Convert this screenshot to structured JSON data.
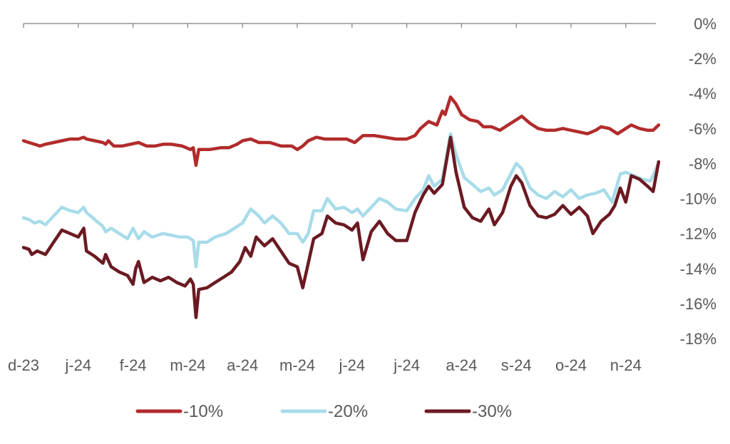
{
  "chart_data": {
    "type": "line",
    "x_ticks": [
      "d-23",
      "j-24",
      "f-24",
      "m-24",
      "a-24",
      "m-24",
      "j-24",
      "j-24",
      "a-24",
      "s-24",
      "o-24",
      "n-24"
    ],
    "y_ticks": [
      "0%",
      "-2%",
      "-4%",
      "-6%",
      "-8%",
      "-10%",
      "-12%",
      "-14%",
      "-16%",
      "-18%"
    ],
    "ylim": [
      -18,
      0
    ],
    "x_range": [
      0,
      11.6
    ],
    "grid": false,
    "legend_position": "bottom",
    "series": [
      {
        "name": "-10%",
        "color": "#b22b2b",
        "points": [
          [
            0.0,
            -6.7
          ],
          [
            0.1,
            -6.8
          ],
          [
            0.2,
            -6.9
          ],
          [
            0.3,
            -7.0
          ],
          [
            0.4,
            -6.9
          ],
          [
            0.55,
            -6.8
          ],
          [
            0.7,
            -6.7
          ],
          [
            0.85,
            -6.6
          ],
          [
            1.0,
            -6.6
          ],
          [
            1.1,
            -6.5
          ],
          [
            1.15,
            -6.6
          ],
          [
            1.3,
            -6.7
          ],
          [
            1.45,
            -6.8
          ],
          [
            1.5,
            -6.9
          ],
          [
            1.55,
            -6.7
          ],
          [
            1.65,
            -7.0
          ],
          [
            1.8,
            -7.0
          ],
          [
            1.95,
            -6.9
          ],
          [
            2.1,
            -6.8
          ],
          [
            2.25,
            -7.0
          ],
          [
            2.4,
            -7.0
          ],
          [
            2.55,
            -6.9
          ],
          [
            2.7,
            -6.9
          ],
          [
            2.9,
            -7.0
          ],
          [
            3.05,
            -7.2
          ],
          [
            3.1,
            -7.1
          ],
          [
            3.15,
            -8.1
          ],
          [
            3.2,
            -7.2
          ],
          [
            3.4,
            -7.2
          ],
          [
            3.6,
            -7.1
          ],
          [
            3.75,
            -7.1
          ],
          [
            3.9,
            -6.9
          ],
          [
            4.0,
            -6.7
          ],
          [
            4.15,
            -6.6
          ],
          [
            4.3,
            -6.8
          ],
          [
            4.5,
            -6.8
          ],
          [
            4.7,
            -7.0
          ],
          [
            4.9,
            -7.0
          ],
          [
            5.0,
            -7.2
          ],
          [
            5.1,
            -7.0
          ],
          [
            5.2,
            -6.7
          ],
          [
            5.35,
            -6.5
          ],
          [
            5.5,
            -6.6
          ],
          [
            5.7,
            -6.6
          ],
          [
            5.9,
            -6.6
          ],
          [
            6.05,
            -6.8
          ],
          [
            6.2,
            -6.4
          ],
          [
            6.4,
            -6.4
          ],
          [
            6.6,
            -6.5
          ],
          [
            6.8,
            -6.6
          ],
          [
            7.0,
            -6.6
          ],
          [
            7.15,
            -6.4
          ],
          [
            7.25,
            -6.0
          ],
          [
            7.4,
            -5.6
          ],
          [
            7.55,
            -5.8
          ],
          [
            7.65,
            -5.0
          ],
          [
            7.7,
            -5.2
          ],
          [
            7.8,
            -4.2
          ],
          [
            7.9,
            -4.6
          ],
          [
            8.0,
            -5.2
          ],
          [
            8.15,
            -5.5
          ],
          [
            8.3,
            -5.6
          ],
          [
            8.4,
            -5.9
          ],
          [
            8.55,
            -5.9
          ],
          [
            8.7,
            -6.1
          ],
          [
            8.85,
            -5.8
          ],
          [
            9.0,
            -5.5
          ],
          [
            9.1,
            -5.3
          ],
          [
            9.25,
            -5.7
          ],
          [
            9.4,
            -6.0
          ],
          [
            9.55,
            -6.1
          ],
          [
            9.7,
            -6.1
          ],
          [
            9.85,
            -6.0
          ],
          [
            10.0,
            -6.1
          ],
          [
            10.15,
            -6.2
          ],
          [
            10.3,
            -6.3
          ],
          [
            10.45,
            -6.1
          ],
          [
            10.55,
            -5.9
          ],
          [
            10.7,
            -6.0
          ],
          [
            10.85,
            -6.3
          ],
          [
            11.0,
            -6.0
          ],
          [
            11.1,
            -5.8
          ],
          [
            11.25,
            -6.0
          ],
          [
            11.4,
            -6.1
          ],
          [
            11.5,
            -6.1
          ],
          [
            11.6,
            -5.8
          ]
        ]
      },
      {
        "name": "-20%",
        "color": "#a8dce9",
        "points": [
          [
            0.0,
            -11.1
          ],
          [
            0.1,
            -11.2
          ],
          [
            0.2,
            -11.4
          ],
          [
            0.3,
            -11.3
          ],
          [
            0.4,
            -11.5
          ],
          [
            0.55,
            -11.0
          ],
          [
            0.7,
            -10.5
          ],
          [
            0.85,
            -10.7
          ],
          [
            1.0,
            -10.8
          ],
          [
            1.1,
            -10.5
          ],
          [
            1.15,
            -10.8
          ],
          [
            1.3,
            -11.2
          ],
          [
            1.45,
            -11.6
          ],
          [
            1.5,
            -11.9
          ],
          [
            1.6,
            -11.7
          ],
          [
            1.75,
            -12.0
          ],
          [
            1.9,
            -12.3
          ],
          [
            2.0,
            -11.7
          ],
          [
            2.1,
            -12.3
          ],
          [
            2.2,
            -11.9
          ],
          [
            2.35,
            -12.2
          ],
          [
            2.55,
            -12.0
          ],
          [
            2.7,
            -12.1
          ],
          [
            2.85,
            -12.2
          ],
          [
            3.0,
            -12.2
          ],
          [
            3.1,
            -12.4
          ],
          [
            3.15,
            -13.9
          ],
          [
            3.2,
            -12.5
          ],
          [
            3.35,
            -12.5
          ],
          [
            3.5,
            -12.2
          ],
          [
            3.7,
            -12.0
          ],
          [
            3.85,
            -11.7
          ],
          [
            4.0,
            -11.4
          ],
          [
            4.15,
            -10.6
          ],
          [
            4.3,
            -11.0
          ],
          [
            4.4,
            -11.4
          ],
          [
            4.55,
            -11.0
          ],
          [
            4.7,
            -11.4
          ],
          [
            4.85,
            -12.0
          ],
          [
            5.0,
            -12.0
          ],
          [
            5.1,
            -12.5
          ],
          [
            5.2,
            -12.0
          ],
          [
            5.3,
            -10.7
          ],
          [
            5.45,
            -10.7
          ],
          [
            5.55,
            -10.0
          ],
          [
            5.7,
            -10.6
          ],
          [
            5.85,
            -10.5
          ],
          [
            6.0,
            -10.8
          ],
          [
            6.1,
            -10.6
          ],
          [
            6.2,
            -11.0
          ],
          [
            6.35,
            -10.5
          ],
          [
            6.5,
            -10.0
          ],
          [
            6.65,
            -10.2
          ],
          [
            6.8,
            -10.6
          ],
          [
            7.0,
            -10.7
          ],
          [
            7.15,
            -10.0
          ],
          [
            7.3,
            -9.5
          ],
          [
            7.4,
            -8.7
          ],
          [
            7.5,
            -9.3
          ],
          [
            7.65,
            -8.9
          ],
          [
            7.8,
            -6.3
          ],
          [
            7.9,
            -7.5
          ],
          [
            8.05,
            -8.8
          ],
          [
            8.2,
            -9.2
          ],
          [
            8.35,
            -9.6
          ],
          [
            8.5,
            -9.4
          ],
          [
            8.6,
            -9.8
          ],
          [
            8.75,
            -9.5
          ],
          [
            8.9,
            -8.6
          ],
          [
            9.0,
            -8.0
          ],
          [
            9.1,
            -8.3
          ],
          [
            9.25,
            -9.4
          ],
          [
            9.4,
            -9.8
          ],
          [
            9.55,
            -10.0
          ],
          [
            9.7,
            -9.6
          ],
          [
            9.85,
            -9.9
          ],
          [
            10.0,
            -9.5
          ],
          [
            10.15,
            -10.0
          ],
          [
            10.3,
            -9.8
          ],
          [
            10.45,
            -9.7
          ],
          [
            10.6,
            -9.5
          ],
          [
            10.75,
            -10.2
          ],
          [
            10.9,
            -8.6
          ],
          [
            11.0,
            -8.5
          ],
          [
            11.15,
            -8.7
          ],
          [
            11.3,
            -8.9
          ],
          [
            11.45,
            -9.0
          ],
          [
            11.6,
            -8.0
          ]
        ]
      },
      {
        "name": "-30%",
        "color": "#6b1a22",
        "points": [
          [
            0.0,
            -12.8
          ],
          [
            0.1,
            -12.9
          ],
          [
            0.15,
            -13.2
          ],
          [
            0.25,
            -13.0
          ],
          [
            0.4,
            -13.2
          ],
          [
            0.55,
            -12.5
          ],
          [
            0.7,
            -11.8
          ],
          [
            0.85,
            -12.0
          ],
          [
            1.0,
            -12.2
          ],
          [
            1.1,
            -11.7
          ],
          [
            1.15,
            -13.0
          ],
          [
            1.3,
            -13.3
          ],
          [
            1.45,
            -13.7
          ],
          [
            1.5,
            -13.2
          ],
          [
            1.6,
            -13.9
          ],
          [
            1.75,
            -14.2
          ],
          [
            1.9,
            -14.4
          ],
          [
            2.0,
            -14.9
          ],
          [
            2.05,
            -14.0
          ],
          [
            2.1,
            -13.6
          ],
          [
            2.2,
            -14.8
          ],
          [
            2.35,
            -14.5
          ],
          [
            2.5,
            -14.7
          ],
          [
            2.65,
            -14.5
          ],
          [
            2.8,
            -14.8
          ],
          [
            2.95,
            -15.0
          ],
          [
            3.05,
            -14.6
          ],
          [
            3.1,
            -14.9
          ],
          [
            3.15,
            -16.8
          ],
          [
            3.2,
            -15.2
          ],
          [
            3.35,
            -15.1
          ],
          [
            3.5,
            -14.8
          ],
          [
            3.65,
            -14.5
          ],
          [
            3.8,
            -14.2
          ],
          [
            3.95,
            -13.6
          ],
          [
            4.05,
            -12.8
          ],
          [
            4.15,
            -13.3
          ],
          [
            4.25,
            -12.2
          ],
          [
            4.4,
            -12.7
          ],
          [
            4.55,
            -12.3
          ],
          [
            4.7,
            -13.0
          ],
          [
            4.85,
            -13.7
          ],
          [
            5.0,
            -13.9
          ],
          [
            5.1,
            -15.1
          ],
          [
            5.2,
            -13.7
          ],
          [
            5.3,
            -12.3
          ],
          [
            5.45,
            -12.0
          ],
          [
            5.55,
            -11.0
          ],
          [
            5.7,
            -11.4
          ],
          [
            5.85,
            -11.5
          ],
          [
            6.0,
            -11.8
          ],
          [
            6.1,
            -11.4
          ],
          [
            6.2,
            -13.5
          ],
          [
            6.35,
            -11.9
          ],
          [
            6.5,
            -11.3
          ],
          [
            6.65,
            -12.0
          ],
          [
            6.8,
            -12.4
          ],
          [
            7.0,
            -12.4
          ],
          [
            7.15,
            -10.8
          ],
          [
            7.3,
            -9.8
          ],
          [
            7.4,
            -9.3
          ],
          [
            7.5,
            -9.7
          ],
          [
            7.65,
            -9.2
          ],
          [
            7.8,
            -6.5
          ],
          [
            7.9,
            -8.5
          ],
          [
            8.05,
            -10.5
          ],
          [
            8.2,
            -11.1
          ],
          [
            8.35,
            -11.3
          ],
          [
            8.5,
            -10.6
          ],
          [
            8.6,
            -11.5
          ],
          [
            8.75,
            -10.8
          ],
          [
            8.9,
            -9.3
          ],
          [
            9.0,
            -8.7
          ],
          [
            9.1,
            -9.1
          ],
          [
            9.25,
            -10.4
          ],
          [
            9.4,
            -11.0
          ],
          [
            9.55,
            -11.1
          ],
          [
            9.7,
            -10.9
          ],
          [
            9.85,
            -10.4
          ],
          [
            10.0,
            -10.9
          ],
          [
            10.15,
            -10.5
          ],
          [
            10.3,
            -11.0
          ],
          [
            10.4,
            -12.0
          ],
          [
            10.55,
            -11.3
          ],
          [
            10.7,
            -10.9
          ],
          [
            10.8,
            -10.4
          ],
          [
            10.9,
            -9.4
          ],
          [
            11.0,
            -10.2
          ],
          [
            11.1,
            -8.7
          ],
          [
            11.25,
            -8.9
          ],
          [
            11.4,
            -9.3
          ],
          [
            11.5,
            -9.6
          ],
          [
            11.6,
            -7.9
          ]
        ]
      }
    ]
  }
}
